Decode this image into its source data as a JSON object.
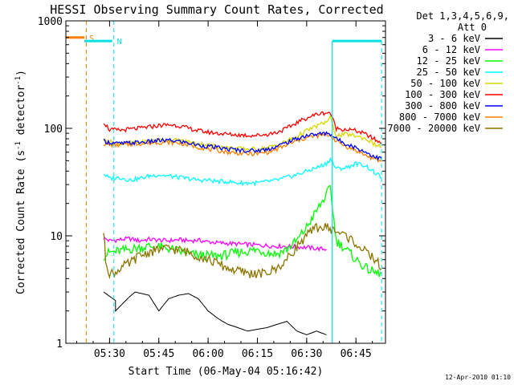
{
  "chart_data": {
    "type": "line",
    "title": "HESSI Observing Summary Count Rates, Corrected",
    "xlabel": "Start Time (06-May-04 05:16:42)",
    "ylabel": "Corrected Count Rate (s^-1 detector^-1)",
    "ylabel_parts": {
      "pre": "Corrected Count Rate (s",
      "sup1": "-1",
      "mid": " detector",
      "sup2": "-1",
      "post": ")"
    },
    "yscale": "log",
    "ylim": [
      1,
      1000
    ],
    "xlim": [
      5.2783,
      6.9
    ],
    "x_unit": "hour of day (UT)",
    "xticks": [
      {
        "v": 5.5,
        "label": "05:30"
      },
      {
        "v": 5.75,
        "label": "05:45"
      },
      {
        "v": 6.0,
        "label": "06:00"
      },
      {
        "v": 6.25,
        "label": "06:15"
      },
      {
        "v": 6.5,
        "label": "06:30"
      },
      {
        "v": 6.75,
        "label": "06:45"
      }
    ],
    "yticks": [
      {
        "v": 1,
        "label": "1"
      },
      {
        "v": 10,
        "label": "10"
      },
      {
        "v": 100,
        "label": "100"
      },
      {
        "v": 1000,
        "label": "1000"
      }
    ],
    "legend": {
      "header": [
        "Det 1,3,4,5,6,9,",
        "Att 0"
      ],
      "placement": "right"
    },
    "series": [
      {
        "name": "3 - 6 keV",
        "color": "#000000",
        "x": [
          5.47,
          5.53,
          5.53,
          5.6,
          5.63,
          5.7,
          5.75,
          5.8,
          5.85,
          5.9,
          5.95,
          6.0,
          6.05,
          6.1,
          6.15,
          6.2,
          6.25,
          6.3,
          6.35,
          6.4,
          6.45,
          6.5,
          6.55,
          6.6
        ],
        "y": [
          3.0,
          2.5,
          2.0,
          2.7,
          3.0,
          2.8,
          2.0,
          2.6,
          2.8,
          2.9,
          2.6,
          2.0,
          1.7,
          1.5,
          1.4,
          1.3,
          1.35,
          1.4,
          1.5,
          1.6,
          1.3,
          1.2,
          1.3,
          1.2
        ]
      },
      {
        "name": "6 - 12 keV",
        "color": "#ff00ff",
        "x": [
          5.47,
          5.5,
          5.55,
          5.6,
          5.65,
          5.7,
          5.75,
          5.8,
          5.85,
          5.9,
          5.95,
          6.0,
          6.05,
          6.1,
          6.15,
          6.2,
          6.25,
          6.3,
          6.35,
          6.4,
          6.45,
          6.5,
          6.55,
          6.6
        ],
        "y": [
          9.5,
          9.0,
          9.2,
          9.4,
          9.0,
          9.3,
          9.1,
          9.0,
          9.2,
          9.0,
          9.1,
          8.8,
          8.6,
          8.5,
          8.4,
          8.3,
          8.2,
          8.1,
          8.0,
          8.0,
          7.9,
          7.8,
          7.6,
          7.5
        ]
      },
      {
        "name": "12 - 25 keV",
        "color": "#00ff00",
        "x": [
          5.47,
          5.5,
          5.55,
          5.6,
          5.7,
          5.8,
          5.85,
          5.9,
          5.95,
          6.0,
          6.05,
          6.1,
          6.15,
          6.2,
          6.25,
          6.3,
          6.35,
          6.4,
          6.45,
          6.5,
          6.55,
          6.6,
          6.62,
          6.65,
          6.7,
          6.75,
          6.8,
          6.85,
          6.88
        ],
        "y": [
          6.5,
          7.0,
          7.2,
          7.5,
          8.0,
          7.6,
          7.2,
          6.8,
          6.6,
          6.5,
          6.5,
          6.7,
          7.0,
          7.2,
          7.4,
          7.0,
          6.8,
          7.5,
          9.0,
          12.0,
          17.0,
          24.0,
          28.0,
          9.0,
          7.5,
          6.0,
          5.0,
          4.5,
          4.5
        ]
      },
      {
        "name": "25 - 50 keV",
        "color": "#00ffff",
        "x": [
          5.47,
          5.5,
          5.55,
          5.6,
          5.65,
          5.7,
          5.75,
          5.8,
          5.85,
          5.9,
          5.95,
          6.0,
          6.05,
          6.1,
          6.15,
          6.2,
          6.25,
          6.3,
          6.35,
          6.4,
          6.45,
          6.5,
          6.55,
          6.6,
          6.62,
          6.65,
          6.7,
          6.75,
          6.8,
          6.85,
          6.88
        ],
        "y": [
          38,
          34,
          35,
          33,
          34,
          36,
          37,
          36,
          35,
          34,
          33,
          33,
          32,
          32,
          31,
          31,
          31,
          32,
          33,
          35,
          37,
          40,
          43,
          47,
          52,
          42,
          43,
          47,
          45,
          38,
          35
        ]
      },
      {
        "name": "50 - 100 keV",
        "color": "#d8d800",
        "x": [
          5.47,
          5.5,
          5.55,
          5.6,
          5.65,
          5.7,
          5.75,
          5.8,
          5.85,
          5.9,
          5.95,
          6.0,
          6.05,
          6.1,
          6.15,
          6.2,
          6.25,
          6.3,
          6.35,
          6.4,
          6.45,
          6.5,
          6.55,
          6.6,
          6.62,
          6.65,
          6.7,
          6.75,
          6.8,
          6.85,
          6.88
        ],
        "y": [
          78,
          75,
          72,
          73,
          74,
          76,
          78,
          78,
          77,
          75,
          72,
          70,
          68,
          66,
          65,
          64,
          64,
          66,
          70,
          76,
          84,
          95,
          105,
          115,
          125,
          85,
          88,
          85,
          80,
          70,
          67
        ]
      },
      {
        "name": "100 - 300 keV",
        "color": "#ff0000",
        "x": [
          5.47,
          5.5,
          5.55,
          5.6,
          5.65,
          5.7,
          5.75,
          5.8,
          5.85,
          5.9,
          5.95,
          6.0,
          6.05,
          6.1,
          6.15,
          6.2,
          6.25,
          6.3,
          6.35,
          6.4,
          6.45,
          6.5,
          6.55,
          6.6,
          6.62,
          6.65,
          6.7,
          6.75,
          6.8,
          6.85,
          6.88
        ],
        "y": [
          115,
          97,
          96,
          98,
          100,
          103,
          106,
          108,
          106,
          100,
          95,
          92,
          90,
          88,
          87,
          86,
          86,
          88,
          92,
          100,
          113,
          125,
          135,
          140,
          140,
          100,
          98,
          95,
          88,
          78,
          72
        ]
      },
      {
        "name": "300 - 800 keV",
        "color": "#0000ff",
        "x": [
          5.47,
          5.5,
          5.55,
          5.6,
          5.65,
          5.7,
          5.75,
          5.8,
          5.85,
          5.9,
          5.95,
          6.0,
          6.05,
          6.1,
          6.15,
          6.2,
          6.25,
          6.3,
          6.35,
          6.4,
          6.45,
          6.5,
          6.55,
          6.6,
          6.62,
          6.65,
          6.7,
          6.75,
          6.8,
          6.85,
          6.88
        ],
        "y": [
          76,
          74,
          72,
          73,
          74,
          75,
          77,
          77,
          76,
          73,
          70,
          68,
          66,
          64,
          63,
          62,
          62,
          64,
          68,
          74,
          80,
          86,
          88,
          90,
          89,
          80,
          72,
          66,
          60,
          54,
          52
        ]
      },
      {
        "name": "800 - 7000 keV",
        "color": "#ff8000",
        "x": [
          5.47,
          5.5,
          5.55,
          5.6,
          5.65,
          5.7,
          5.75,
          5.8,
          5.85,
          5.9,
          5.95,
          6.0,
          6.05,
          6.1,
          6.15,
          6.2,
          6.25,
          6.3,
          6.35,
          6.4,
          6.45,
          6.5,
          6.55,
          6.6,
          6.62,
          6.65,
          6.7,
          6.75,
          6.8,
          6.85,
          6.88
        ],
        "y": [
          72,
          70,
          70,
          71,
          72,
          73,
          74,
          74,
          73,
          70,
          67,
          64,
          62,
          60,
          59,
          58,
          58,
          60,
          64,
          70,
          76,
          82,
          85,
          87,
          86,
          76,
          68,
          62,
          56,
          51,
          49
        ]
      },
      {
        "name": "7000 - 20000 keV",
        "color": "#8b7500",
        "x": [
          5.47,
          5.48,
          5.5,
          5.53,
          5.55,
          5.6,
          5.65,
          5.7,
          5.75,
          5.8,
          5.85,
          5.9,
          5.95,
          6.0,
          6.05,
          6.1,
          6.15,
          6.2,
          6.25,
          6.3,
          6.35,
          6.4,
          6.45,
          6.5,
          6.55,
          6.6,
          6.65,
          6.7,
          6.75,
          6.8,
          6.85,
          6.88
        ],
        "y": [
          11,
          6,
          4.5,
          4.5,
          5.0,
          5.5,
          6.5,
          7.0,
          7.5,
          7.6,
          7.4,
          7.0,
          6.5,
          6.0,
          5.5,
          5.0,
          4.7,
          4.5,
          4.4,
          4.5,
          5.0,
          6.0,
          8.0,
          10.0,
          12.0,
          12.0,
          11.0,
          10.0,
          8.5,
          7.0,
          6.0,
          5.0
        ]
      }
    ],
    "annotations": {
      "markers": [
        {
          "label": "S",
          "color": "#ff8000",
          "x": 5.382,
          "bar_y": 700,
          "bar_x": [
            5.278,
            5.372
          ]
        },
        {
          "label": "N",
          "color": "#00e0e0",
          "x": 5.522,
          "bar_y": 650,
          "bar_x": [
            5.372,
            5.513
          ]
        }
      ],
      "flare_window": {
        "color": "#00e0e0",
        "x_start": 6.63,
        "x_end": 6.88,
        "bar_y": 650
      }
    },
    "timestamp": "12-Apr-2010 01:10"
  }
}
